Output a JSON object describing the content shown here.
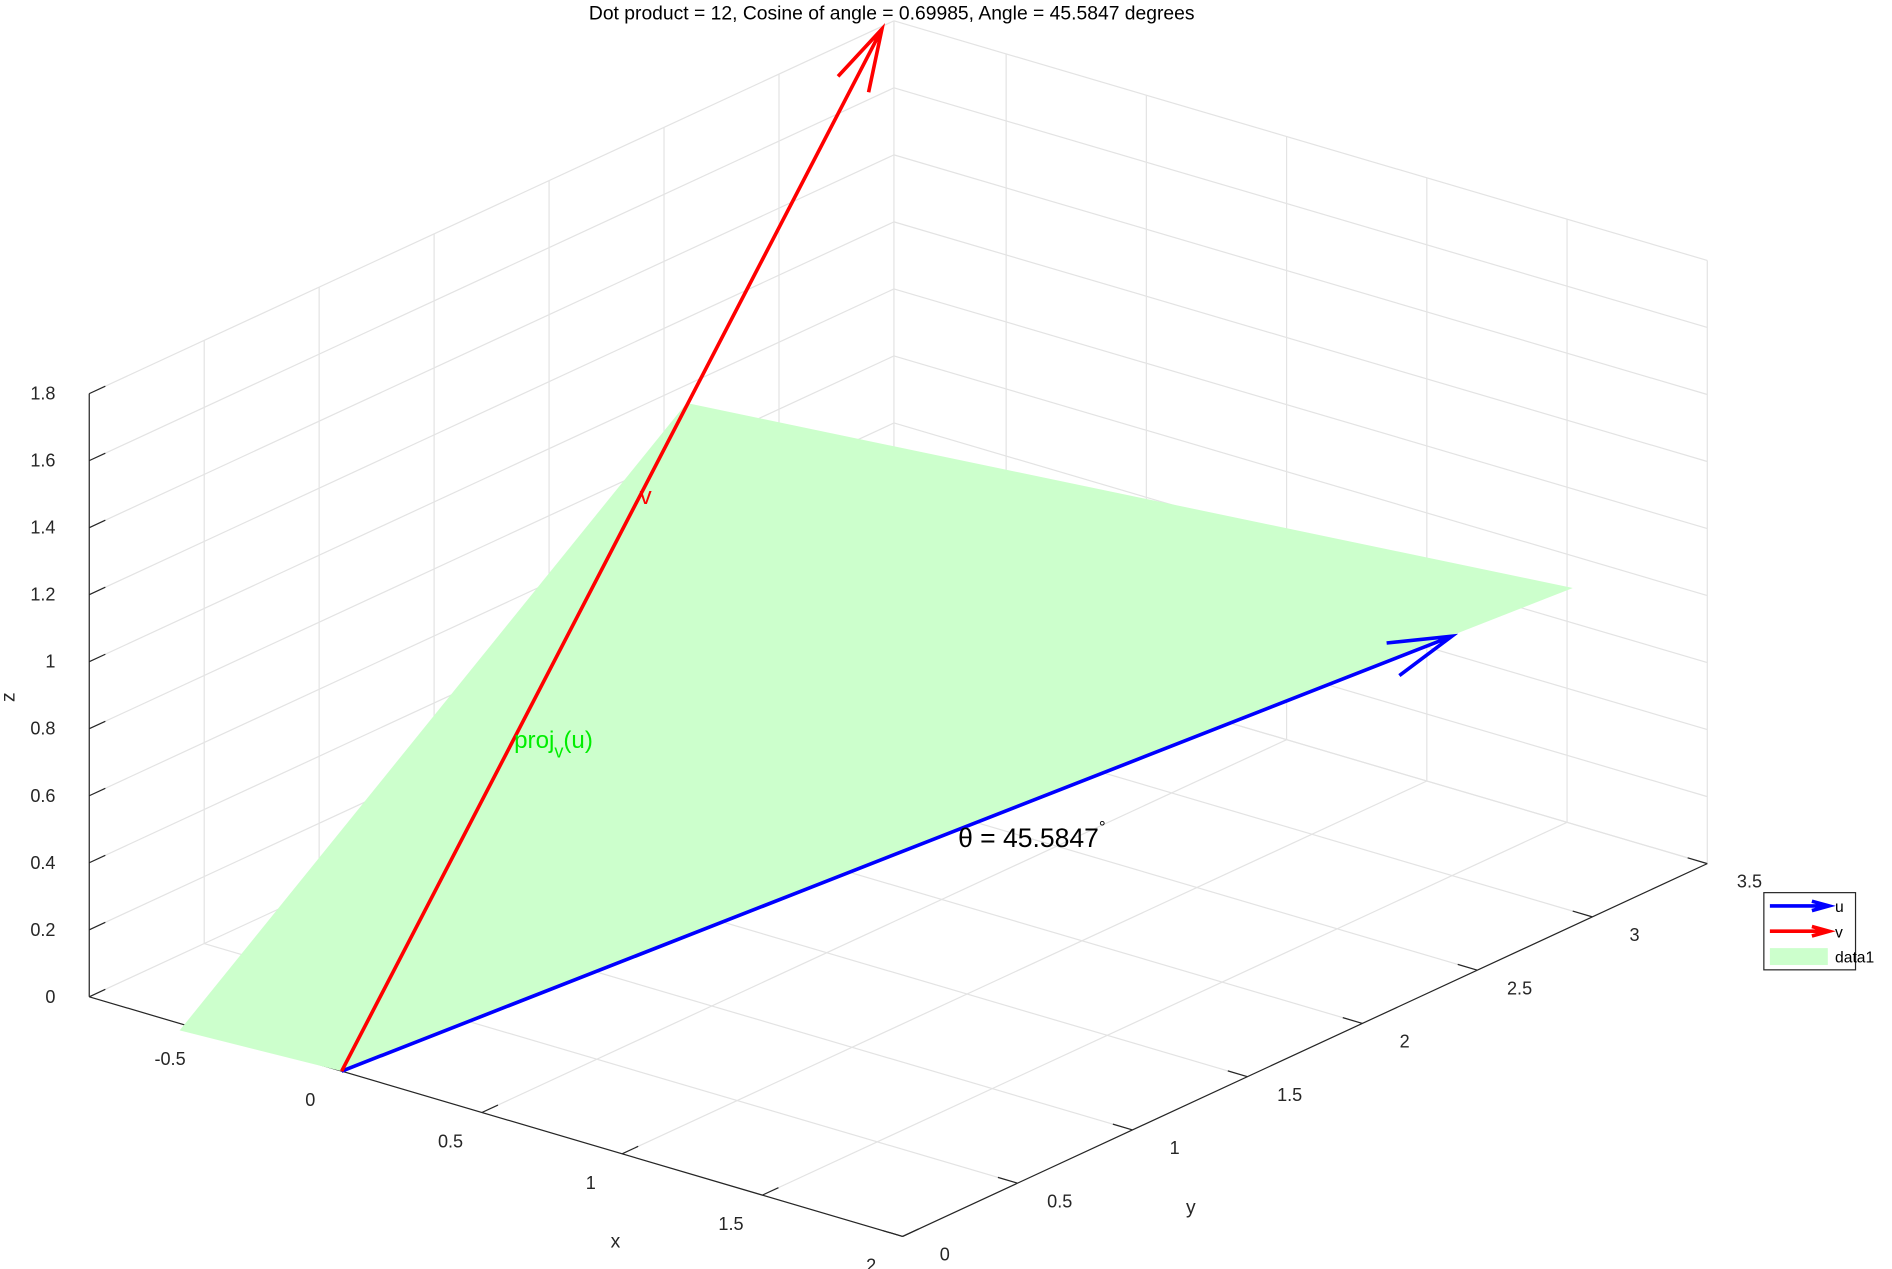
{
  "chart_data": {
    "type": "quiver3",
    "title": "Dot product = 12, Cosine of angle = 0.69985, Angle = 45.5847 degrees",
    "xlabel": "x",
    "ylabel": "y",
    "zlabel": "z",
    "xlim": [
      -0.9,
      2
    ],
    "ylim": [
      0,
      3.5
    ],
    "zlim": [
      0,
      1.8
    ],
    "xticks": [
      -0.5,
      0,
      0.5,
      1,
      1.5,
      2
    ],
    "yticks": [
      0,
      0.5,
      1,
      1.5,
      2,
      2.5,
      3,
      3.5
    ],
    "zticks": [
      0,
      0.2,
      0.4,
      0.6,
      0.8,
      1,
      1.2,
      1.4,
      1.6,
      1.8
    ],
    "grid": true,
    "legend": "eastoutside",
    "series": [
      {
        "name": "u",
        "color": "#0000ff",
        "kind": "arrow",
        "values": [
          1.95,
          2.45,
          1.0
        ]
      },
      {
        "name": "v",
        "color": "#ff0000",
        "kind": "arrow",
        "values": [
          0.5,
          1.74,
          2.68
        ]
      },
      {
        "name": "data1",
        "color": "#ccffcc",
        "kind": "patch",
        "values": [
          [
            -0.34,
            -0.29,
            0.13
          ],
          [
            0,
            0,
            0
          ],
          [
            2.16,
            2.72,
            1.11
          ],
          [
            0.32,
            1.11,
            1.72
          ]
        ]
      }
    ],
    "annotations": {
      "v_label": {
        "text": "v",
        "color": "#ff0000"
      },
      "proj_label": {
        "text": "proj",
        "sub": "v",
        "tail": "(u)",
        "color": "#00ee00"
      },
      "theta_label": {
        "text": "θ = 45.5847",
        "sup": "°",
        "color": "#000000"
      }
    }
  }
}
